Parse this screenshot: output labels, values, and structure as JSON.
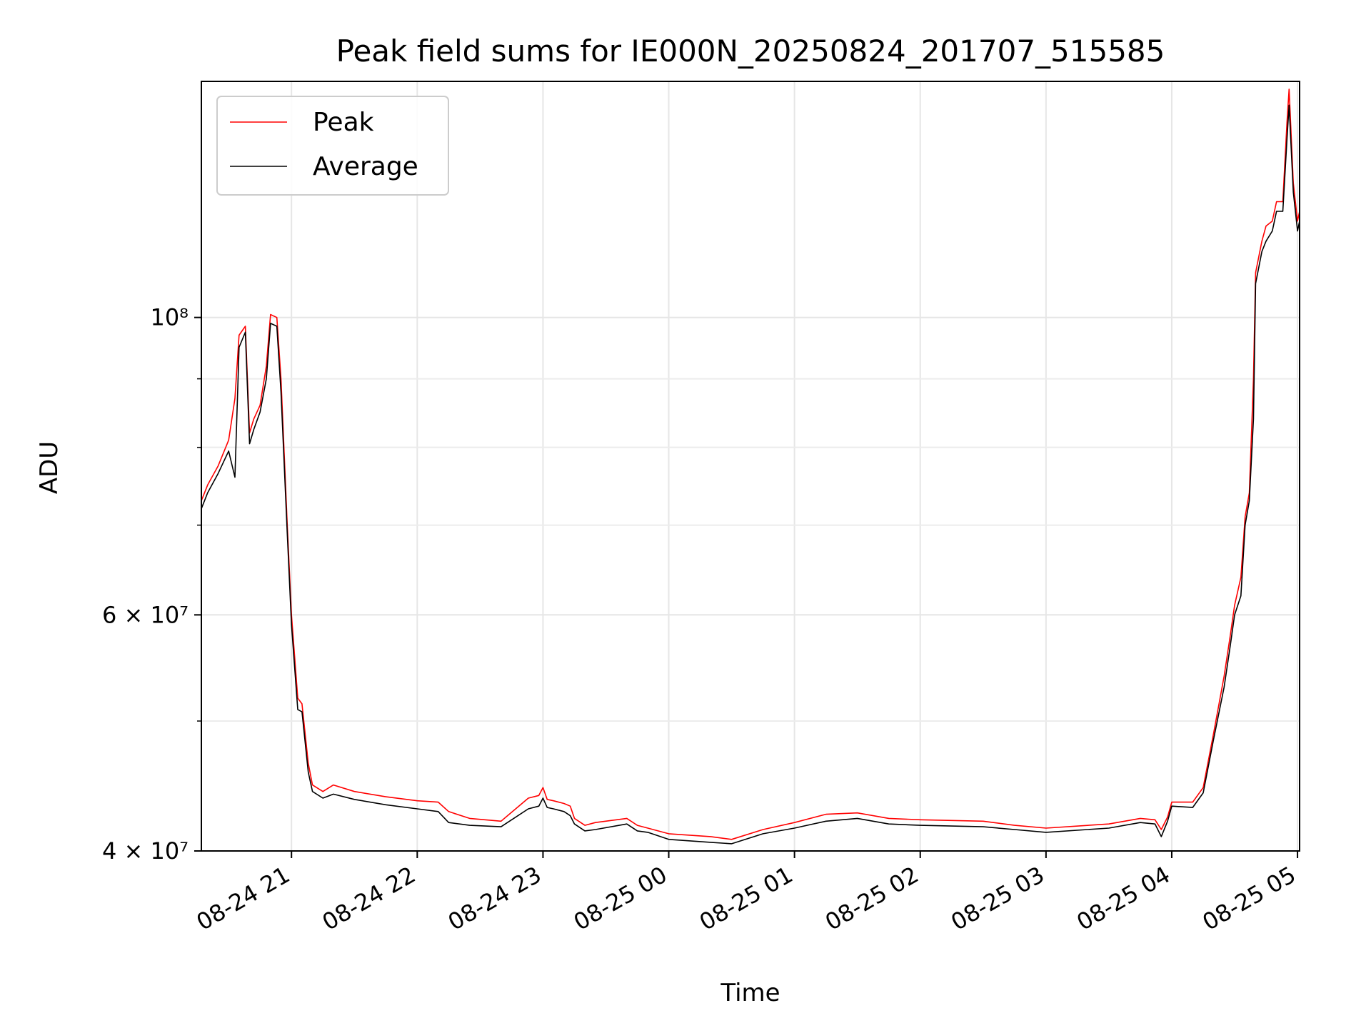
{
  "chart_data": {
    "type": "line",
    "title": "Peak field sums for IE000N_20250824_201707_515585",
    "xlabel": "Time",
    "ylabel": "ADU",
    "y_scale": "log",
    "ylim": [
      40000000,
      150000000
    ],
    "xlim": [
      "2025-08-24 20:17",
      "2025-08-25 05:01"
    ],
    "grid": true,
    "legend_position": "top-left",
    "x_ticks": [
      {
        "t": "2025-08-24 21:00",
        "label": "08-24 21"
      },
      {
        "t": "2025-08-24 22:00",
        "label": "08-24 22"
      },
      {
        "t": "2025-08-24 23:00",
        "label": "08-24 23"
      },
      {
        "t": "2025-08-25 00:00",
        "label": "08-25 00"
      },
      {
        "t": "2025-08-25 01:00",
        "label": "08-25 01"
      },
      {
        "t": "2025-08-25 02:00",
        "label": "08-25 02"
      },
      {
        "t": "2025-08-25 03:00",
        "label": "08-25 03"
      },
      {
        "t": "2025-08-25 04:00",
        "label": "08-25 04"
      },
      {
        "t": "2025-08-25 05:00",
        "label": "08-25 05"
      }
    ],
    "y_ticks": [
      {
        "value": 40000000,
        "label": "4 × 10⁷"
      },
      {
        "value": 60000000,
        "label": "6 × 10⁷"
      },
      {
        "value": 100000000,
        "label": "10⁸"
      }
    ],
    "series": [
      {
        "name": "Peak",
        "color": "#ff0000",
        "x": [
          "2025-08-24 20:17",
          "2025-08-24 20:20",
          "2025-08-24 20:25",
          "2025-08-24 20:30",
          "2025-08-24 20:33",
          "2025-08-24 20:35",
          "2025-08-24 20:38",
          "2025-08-24 20:40",
          "2025-08-24 20:42",
          "2025-08-24 20:45",
          "2025-08-24 20:48",
          "2025-08-24 20:50",
          "2025-08-24 20:53",
          "2025-08-24 20:55",
          "2025-08-24 20:58",
          "2025-08-24 21:00",
          "2025-08-24 21:03",
          "2025-08-24 21:05",
          "2025-08-24 21:08",
          "2025-08-24 21:10",
          "2025-08-24 21:15",
          "2025-08-24 21:20",
          "2025-08-24 21:30",
          "2025-08-24 21:45",
          "2025-08-24 22:00",
          "2025-08-24 22:10",
          "2025-08-24 22:15",
          "2025-08-24 22:25",
          "2025-08-24 22:40",
          "2025-08-24 22:53",
          "2025-08-24 22:58",
          "2025-08-24 23:00",
          "2025-08-24 23:02",
          "2025-08-24 23:05",
          "2025-08-24 23:10",
          "2025-08-24 23:13",
          "2025-08-24 23:15",
          "2025-08-24 23:20",
          "2025-08-24 23:25",
          "2025-08-24 23:40",
          "2025-08-24 23:45",
          "2025-08-24 23:50",
          "2025-08-25 00:00",
          "2025-08-25 00:20",
          "2025-08-25 00:30",
          "2025-08-25 00:45",
          "2025-08-25 01:00",
          "2025-08-25 01:15",
          "2025-08-25 01:30",
          "2025-08-25 01:45",
          "2025-08-25 02:00",
          "2025-08-25 02:30",
          "2025-08-25 02:45",
          "2025-08-25 03:00",
          "2025-08-25 03:30",
          "2025-08-25 03:45",
          "2025-08-25 03:52",
          "2025-08-25 03:55",
          "2025-08-25 03:58",
          "2025-08-25 04:00",
          "2025-08-25 04:10",
          "2025-08-25 04:15",
          "2025-08-25 04:20",
          "2025-08-25 04:25",
          "2025-08-25 04:28",
          "2025-08-25 04:30",
          "2025-08-25 04:33",
          "2025-08-25 04:35",
          "2025-08-25 04:37",
          "2025-08-25 04:39",
          "2025-08-25 04:40",
          "2025-08-25 04:43",
          "2025-08-25 04:45",
          "2025-08-25 04:48",
          "2025-08-25 04:50",
          "2025-08-25 04:53",
          "2025-08-25 04:55",
          "2025-08-25 04:56",
          "2025-08-25 04:58",
          "2025-08-25 05:00",
          "2025-08-25 05:01"
        ],
        "values": [
          73000000,
          75000000,
          77500000,
          81000000,
          87000000,
          97000000,
          98500000,
          82000000,
          84000000,
          86000000,
          92000000,
          100500000,
          100000000,
          90000000,
          70000000,
          60000000,
          52000000,
          51500000,
          46500000,
          44800000,
          44300000,
          44800000,
          44300000,
          43900000,
          43600000,
          43500000,
          42800000,
          42300000,
          42100000,
          43800000,
          44000000,
          44600000,
          43700000,
          43600000,
          43400000,
          43200000,
          42300000,
          41800000,
          42000000,
          42300000,
          41800000,
          41600000,
          41200000,
          41000000,
          40800000,
          41500000,
          42000000,
          42600000,
          42700000,
          42300000,
          42200000,
          42100000,
          41800000,
          41600000,
          41900000,
          42300000,
          42200000,
          41500000,
          42400000,
          43500000,
          43500000,
          44600000,
          49000000,
          54000000,
          58000000,
          61000000,
          64000000,
          71000000,
          74000000,
          90000000,
          108000000,
          114000000,
          117000000,
          118000000,
          122000000,
          122000000,
          140000000,
          148000000,
          126000000,
          118000000,
          120000000
        ]
      },
      {
        "name": "Average",
        "color": "#000000",
        "x": [
          "2025-08-24 20:17",
          "2025-08-24 20:20",
          "2025-08-24 20:25",
          "2025-08-24 20:30",
          "2025-08-24 20:33",
          "2025-08-24 20:35",
          "2025-08-24 20:38",
          "2025-08-24 20:40",
          "2025-08-24 20:42",
          "2025-08-24 20:45",
          "2025-08-24 20:48",
          "2025-08-24 20:50",
          "2025-08-24 20:53",
          "2025-08-24 20:55",
          "2025-08-24 20:58",
          "2025-08-24 21:00",
          "2025-08-24 21:03",
          "2025-08-24 21:05",
          "2025-08-24 21:08",
          "2025-08-24 21:10",
          "2025-08-24 21:15",
          "2025-08-24 21:20",
          "2025-08-24 21:30",
          "2025-08-24 21:45",
          "2025-08-24 22:00",
          "2025-08-24 22:10",
          "2025-08-24 22:15",
          "2025-08-24 22:25",
          "2025-08-24 22:40",
          "2025-08-24 22:53",
          "2025-08-24 22:58",
          "2025-08-24 23:00",
          "2025-08-24 23:02",
          "2025-08-24 23:05",
          "2025-08-24 23:10",
          "2025-08-24 23:13",
          "2025-08-24 23:15",
          "2025-08-24 23:20",
          "2025-08-24 23:25",
          "2025-08-24 23:40",
          "2025-08-24 23:45",
          "2025-08-24 23:50",
          "2025-08-25 00:00",
          "2025-08-25 00:20",
          "2025-08-25 00:30",
          "2025-08-25 00:45",
          "2025-08-25 01:00",
          "2025-08-25 01:15",
          "2025-08-25 01:30",
          "2025-08-25 01:45",
          "2025-08-25 02:00",
          "2025-08-25 02:30",
          "2025-08-25 02:45",
          "2025-08-25 03:00",
          "2025-08-25 03:30",
          "2025-08-25 03:45",
          "2025-08-25 03:52",
          "2025-08-25 03:55",
          "2025-08-25 03:58",
          "2025-08-25 04:00",
          "2025-08-25 04:10",
          "2025-08-25 04:15",
          "2025-08-25 04:20",
          "2025-08-25 04:25",
          "2025-08-25 04:28",
          "2025-08-25 04:30",
          "2025-08-25 04:33",
          "2025-08-25 04:35",
          "2025-08-25 04:37",
          "2025-08-25 04:39",
          "2025-08-25 04:40",
          "2025-08-25 04:43",
          "2025-08-25 04:45",
          "2025-08-25 04:48",
          "2025-08-25 04:50",
          "2025-08-25 04:53",
          "2025-08-25 04:55",
          "2025-08-25 04:56",
          "2025-08-25 04:58",
          "2025-08-25 05:00",
          "2025-08-25 05:01"
        ],
        "values": [
          72000000,
          74000000,
          76500000,
          79500000,
          76000000,
          95000000,
          97500000,
          80500000,
          82500000,
          85000000,
          90000000,
          99000000,
          98500000,
          88000000,
          69000000,
          59000000,
          51000000,
          50800000,
          45800000,
          44300000,
          43800000,
          44100000,
          43700000,
          43300000,
          43000000,
          42800000,
          42000000,
          41800000,
          41700000,
          43000000,
          43200000,
          43800000,
          43100000,
          43000000,
          42800000,
          42500000,
          41900000,
          41400000,
          41500000,
          41900000,
          41400000,
          41300000,
          40800000,
          40600000,
          40500000,
          41200000,
          41600000,
          42100000,
          42300000,
          41900000,
          41800000,
          41700000,
          41500000,
          41300000,
          41600000,
          42000000,
          41900000,
          41000000,
          42100000,
          43200000,
          43100000,
          44200000,
          48500000,
          53000000,
          57000000,
          60000000,
          62000000,
          70000000,
          73000000,
          84000000,
          106000000,
          112000000,
          114000000,
          116000000,
          120000000,
          120000000,
          136000000,
          144000000,
          124000000,
          116000000,
          118000000
        ]
      }
    ]
  }
}
